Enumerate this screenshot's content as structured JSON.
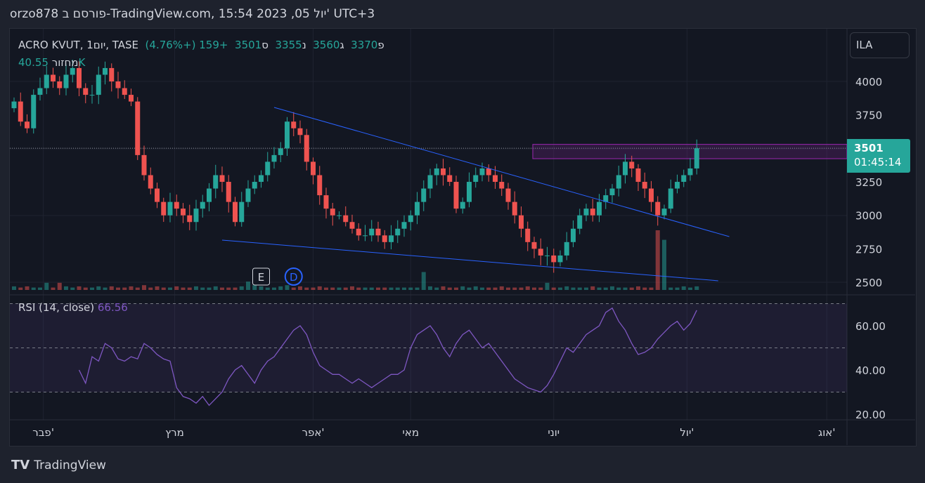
{
  "header": "orzo878 פורסם ב-TradingView.com, 15:54 2023 ,05 יול' UTC+3",
  "legend": {
    "symbol": "ACRO KVUT, 1יום, TASE",
    "open_label": "פ",
    "open": "3370",
    "high_label": "ג",
    "high": "3560",
    "low_label": "נ",
    "low": "3355",
    "close_label": "ס",
    "close": "3501",
    "change": "+159 (+4.76%)"
  },
  "volume": {
    "label": "מחזור",
    "value": "40.55K"
  },
  "rsi": {
    "label": "RSI (14, close)",
    "value": "66.56"
  },
  "currency": "ILA",
  "price_tag": {
    "price": "3501",
    "countdown": "01:45:14"
  },
  "branding": "TradingView",
  "colors": {
    "up": "#26a69a",
    "down": "#ef5350",
    "rsi": "#7e57c2",
    "trend": "#2962ff",
    "zone": "#9c27b0"
  },
  "chart_data": {
    "type": "candlestick",
    "closes": [
      3850,
      3700,
      3650,
      3900,
      3950,
      4050,
      4000,
      3950,
      4050,
      4100,
      3950,
      3900,
      3900,
      4050,
      4100,
      4000,
      3950,
      3900,
      3850,
      3450,
      3300,
      3200,
      3100,
      3000,
      3100,
      3050,
      3000,
      2950,
      3050,
      3100,
      3200,
      3300,
      3250,
      3100,
      2950,
      3100,
      3200,
      3250,
      3300,
      3400,
      3450,
      3500,
      3700,
      3650,
      3600,
      3400,
      3300,
      3150,
      3050,
      3000,
      3000,
      2950,
      2900,
      2850,
      2850,
      2900,
      2850,
      2800,
      2850,
      2900,
      2950,
      3000,
      3100,
      3200,
      3300,
      3350,
      3300,
      3250,
      3050,
      3100,
      3250,
      3300,
      3350,
      3300,
      3250,
      3200,
      3100,
      3000,
      2900,
      2800,
      2750,
      2700,
      2700,
      2650,
      2700,
      2800,
      2900,
      3000,
      3050,
      3000,
      3100,
      3150,
      3200,
      3300,
      3400,
      3350,
      3250,
      3200,
      3100,
      3000,
      3050,
      3200,
      3250,
      3300,
      3350,
      3501
    ],
    "volumes": [
      3,
      2,
      3,
      2,
      2,
      6,
      2,
      6,
      3,
      2,
      3,
      2,
      2,
      3,
      2,
      3,
      2,
      2,
      3,
      2,
      4,
      2,
      3,
      2,
      2,
      3,
      2,
      2,
      3,
      2,
      2,
      3,
      2,
      2,
      2,
      3,
      7,
      4,
      3,
      2,
      2,
      3,
      4,
      2,
      3,
      2,
      2,
      3,
      2,
      2,
      2,
      2,
      3,
      2,
      2,
      2,
      2,
      2,
      2,
      2,
      2,
      2,
      2,
      15,
      3,
      2,
      3,
      2,
      2,
      3,
      2,
      3,
      2,
      2,
      2,
      3,
      2,
      2,
      2,
      3,
      2,
      2,
      6,
      2,
      2,
      3,
      2,
      2,
      2,
      3,
      2,
      2,
      3,
      2,
      2,
      2,
      3,
      2,
      2,
      50,
      42,
      2,
      2,
      3,
      2,
      3
    ],
    "rsi": [
      40,
      34,
      46,
      44,
      52,
      50,
      45,
      44,
      46,
      45,
      52,
      50,
      47,
      45,
      44,
      32,
      28,
      27,
      25,
      28,
      24,
      27,
      30,
      36,
      40,
      42,
      38,
      34,
      40,
      44,
      46,
      50,
      54,
      58,
      60,
      56,
      48,
      42,
      40,
      38,
      38,
      36,
      34,
      36,
      34,
      32,
      34,
      36,
      38,
      38,
      40,
      50,
      56,
      58,
      60,
      56,
      50,
      46,
      52,
      56,
      58,
      54,
      50,
      52,
      48,
      44,
      40,
      36,
      34,
      32,
      31,
      30,
      33,
      38,
      44,
      50,
      48,
      52,
      56,
      58,
      60,
      66,
      68,
      62,
      58,
      52,
      47,
      48,
      50,
      54,
      57,
      60,
      62,
      58,
      61,
      67
    ],
    "price_axis": [
      4000,
      3750,
      3500,
      3250,
      3000,
      2750,
      2500
    ],
    "rsi_axis": [
      "60.00",
      "40.00",
      "20.00"
    ],
    "rsi_bands": [
      70,
      50,
      30
    ],
    "months": [
      {
        "label": "פבר'",
        "i": 4.5
      },
      {
        "label": "מרץ",
        "i": 24.7
      },
      {
        "label": "אפר'",
        "i": 46
      },
      {
        "label": "מאי",
        "i": 61
      },
      {
        "label": "יוני",
        "i": 83
      },
      {
        "label": "יול'",
        "i": 103.5
      },
      {
        "label": "אוג'",
        "i": 125
      }
    ],
    "trendlines": [
      {
        "from": [
          40,
          3806
        ],
        "to": [
          110,
          2841
        ]
      },
      {
        "from": [
          32,
          2815
        ],
        "to": [
          108.3,
          2511
        ]
      }
    ],
    "zone": {
      "start": 80,
      "top": 3530,
      "bottom": 3423
    },
    "events": [
      {
        "label": "E",
        "i": 38
      },
      {
        "label": "D",
        "i": 43
      }
    ]
  }
}
